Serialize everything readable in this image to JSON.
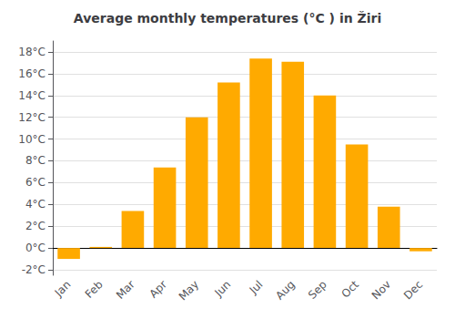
{
  "chart_data": {
    "type": "bar",
    "title": "Average monthly temperatures (°C ) in Žiri",
    "categories": [
      "Jan",
      "Feb",
      "Mar",
      "Apr",
      "May",
      "Jun",
      "Jul",
      "Aug",
      "Sep",
      "Oct",
      "Nov",
      "Dec"
    ],
    "values": [
      -1.0,
      0.1,
      3.4,
      7.4,
      12.0,
      15.2,
      17.4,
      17.1,
      14.0,
      9.5,
      3.8,
      -0.3
    ],
    "color": "#FFAA00",
    "ylim": [
      -2.5,
      19
    ],
    "yticks": [
      {
        "value": -2,
        "label": "-2°C"
      },
      {
        "value": 0,
        "label": "0°C"
      },
      {
        "value": 2,
        "label": "2°C"
      },
      {
        "value": 4,
        "label": "4°C"
      },
      {
        "value": 6,
        "label": "6°C"
      },
      {
        "value": 8,
        "label": "8°C"
      },
      {
        "value": 10,
        "label": "10°C"
      },
      {
        "value": 12,
        "label": "12°C"
      },
      {
        "value": 14,
        "label": "14°C"
      },
      {
        "value": 16,
        "label": "16°C"
      },
      {
        "value": 18,
        "label": "18°C"
      }
    ],
    "grid": true
  }
}
